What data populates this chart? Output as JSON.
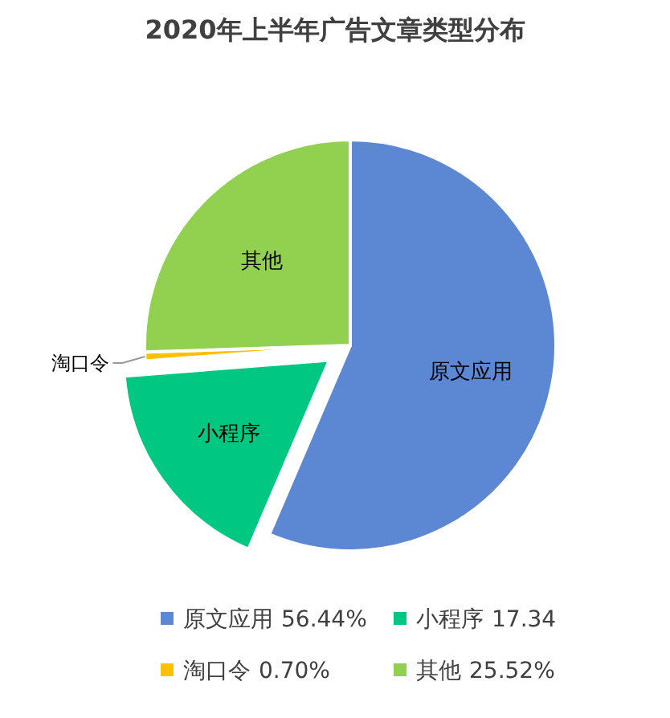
{
  "chart_data": {
    "type": "pie",
    "title": "2020年上半年广告文章类型分布",
    "categories": [
      "原文应用",
      "小程序",
      "淘口令",
      "其他"
    ],
    "values": [
      56.44,
      17.34,
      0.7,
      25.52
    ],
    "value_labels": [
      "56.44%",
      "17.34",
      "0.70%",
      "25.52%"
    ],
    "colors": [
      "#5b87d3",
      "#00c882",
      "#ffc000",
      "#92d050"
    ],
    "legend": "bottom"
  }
}
